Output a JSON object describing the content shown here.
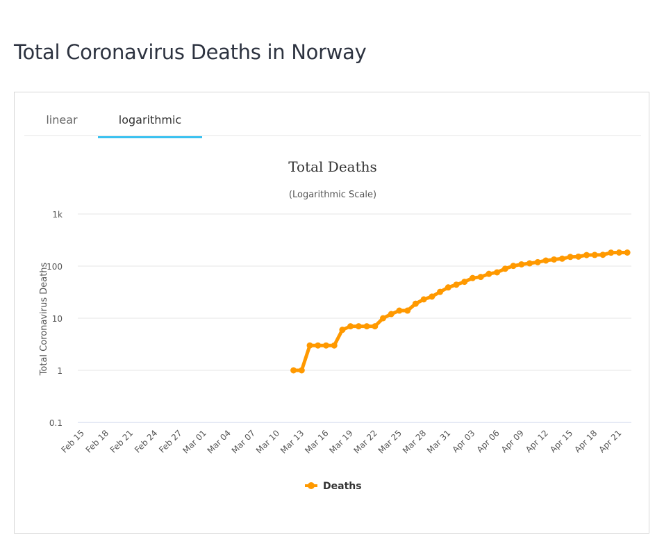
{
  "page": {
    "title": "Total Coronavirus Deaths in Norway"
  },
  "tabs": [
    {
      "label": "linear",
      "active": false
    },
    {
      "label": "logarithmic",
      "active": true
    }
  ],
  "colors": {
    "series": "#FF9900",
    "tab_underline": "#3bc1f0",
    "grid": "#e6e6e6"
  },
  "chart_data": {
    "type": "line",
    "title": "Total Deaths",
    "subtitle": "(Logarithmic Scale)",
    "ylabel": "Total Coronavirus Deaths",
    "xlabel": "",
    "yscale": "log",
    "ylim": [
      0.1,
      1000
    ],
    "yticks": [
      "0.1",
      "1",
      "10",
      "100",
      "1k"
    ],
    "ytick_values": [
      0.1,
      1,
      10,
      100,
      1000
    ],
    "grid": true,
    "legend_position": "bottom-center",
    "categories": [
      "Feb 15",
      "Feb 16",
      "Feb 17",
      "Feb 18",
      "Feb 19",
      "Feb 20",
      "Feb 21",
      "Feb 22",
      "Feb 23",
      "Feb 24",
      "Feb 25",
      "Feb 26",
      "Feb 27",
      "Feb 28",
      "Feb 29",
      "Mar 01",
      "Mar 02",
      "Mar 03",
      "Mar 04",
      "Mar 05",
      "Mar 06",
      "Mar 07",
      "Mar 08",
      "Mar 09",
      "Mar 10",
      "Mar 11",
      "Mar 12",
      "Mar 13",
      "Mar 14",
      "Mar 15",
      "Mar 16",
      "Mar 17",
      "Mar 18",
      "Mar 19",
      "Mar 20",
      "Mar 21",
      "Mar 22",
      "Mar 23",
      "Mar 24",
      "Mar 25",
      "Mar 26",
      "Mar 27",
      "Mar 28",
      "Mar 29",
      "Mar 30",
      "Mar 31",
      "Apr 01",
      "Apr 02",
      "Apr 03",
      "Apr 04",
      "Apr 05",
      "Apr 06",
      "Apr 07",
      "Apr 08",
      "Apr 09",
      "Apr 10",
      "Apr 11",
      "Apr 12",
      "Apr 13",
      "Apr 14",
      "Apr 15",
      "Apr 16",
      "Apr 17",
      "Apr 18",
      "Apr 19",
      "Apr 20",
      "Apr 21",
      "Apr 22"
    ],
    "xtick_labels": [
      "Feb 15",
      "Feb 18",
      "Feb 21",
      "Feb 24",
      "Feb 27",
      "Mar 01",
      "Mar 04",
      "Mar 07",
      "Mar 10",
      "Mar 13",
      "Mar 16",
      "Mar 19",
      "Mar 22",
      "Mar 25",
      "Mar 28",
      "Mar 31",
      "Apr 03",
      "Apr 06",
      "Apr 09",
      "Apr 12",
      "Apr 15",
      "Apr 18",
      "Apr 21"
    ],
    "series": [
      {
        "name": "Deaths",
        "values": [
          null,
          null,
          null,
          null,
          null,
          null,
          null,
          null,
          null,
          null,
          null,
          null,
          null,
          null,
          null,
          null,
          null,
          null,
          null,
          null,
          null,
          null,
          null,
          null,
          null,
          null,
          1,
          1,
          3,
          3,
          3,
          3,
          6,
          7,
          7,
          7,
          7,
          10,
          12,
          14,
          14,
          19,
          23,
          26,
          32,
          39,
          44,
          50,
          59,
          62,
          71,
          76,
          89,
          101,
          108,
          113,
          119,
          128,
          134,
          139,
          150,
          152,
          163,
          164,
          165,
          181,
          182,
          182
        ]
      }
    ]
  }
}
